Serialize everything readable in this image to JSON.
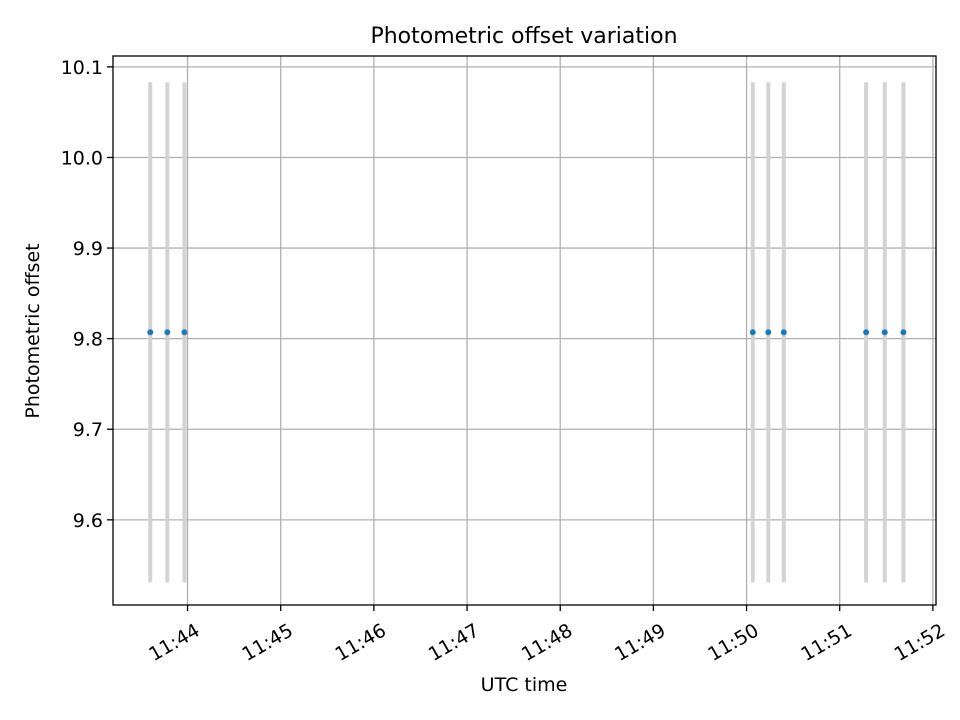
{
  "chart_data": {
    "type": "scatter",
    "title": "Photometric offset variation",
    "xlabel": "UTC time",
    "ylabel": "Photometric offset",
    "x_ticks": [
      "11:44",
      "11:45",
      "11:46",
      "11:47",
      "11:48",
      "11:49",
      "11:50",
      "11:51",
      "11:52"
    ],
    "y_ticks": [
      "9.6",
      "9.7",
      "9.8",
      "9.9",
      "10.0",
      "10.1"
    ],
    "xlim": [
      "11:43:12",
      "11:52:02"
    ],
    "ylim": [
      9.506,
      10.112
    ],
    "grid": true,
    "points": [
      {
        "x": "11:43:36",
        "y": 9.807,
        "err": 0.276
      },
      {
        "x": "11:43:47",
        "y": 9.807,
        "err": 0.276
      },
      {
        "x": "11:43:58",
        "y": 9.807,
        "err": 0.276
      },
      {
        "x": "11:50:04",
        "y": 9.807,
        "err": 0.276
      },
      {
        "x": "11:50:14",
        "y": 9.807,
        "err": 0.276
      },
      {
        "x": "11:50:24",
        "y": 9.807,
        "err": 0.276
      },
      {
        "x": "11:51:17",
        "y": 9.807,
        "err": 0.276
      },
      {
        "x": "11:51:29",
        "y": 9.807,
        "err": 0.276
      },
      {
        "x": "11:51:41",
        "y": 9.807,
        "err": 0.276
      }
    ],
    "colors": {
      "marker": "#1f77b4",
      "errorbar": "#d3d3d3",
      "grid": "#b0b0b0"
    }
  }
}
